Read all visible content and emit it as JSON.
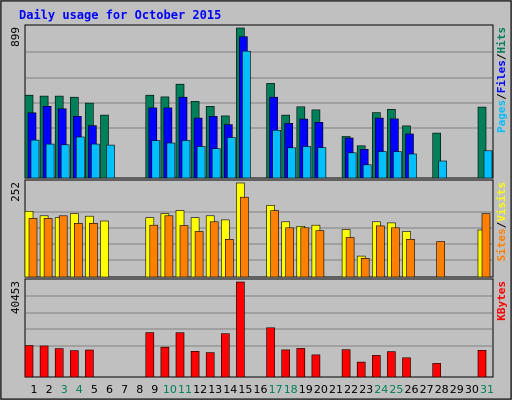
{
  "chart_data": {
    "type": "bar",
    "title": "Daily usage for October 2015",
    "days": [
      "1",
      "2",
      "3",
      "4",
      "5",
      "6",
      "7",
      "8",
      "9",
      "10",
      "11",
      "12",
      "13",
      "14",
      "15",
      "16",
      "17",
      "18",
      "19",
      "20",
      "21",
      "22",
      "23",
      "24",
      "25",
      "26",
      "27",
      "28",
      "29",
      "30",
      "31"
    ],
    "weekend_days": [
      "3",
      "4",
      "10",
      "11",
      "17",
      "18",
      "24",
      "25",
      "31"
    ],
    "panels": [
      {
        "name": "top",
        "max_label": "899",
        "ymax": 899,
        "series": [
          {
            "name": "Hits",
            "color": "#00805A",
            "values": [
              496,
              491,
              491,
              484,
              449,
              377,
              null,
              null,
              496,
              486,
              562,
              459,
              430,
              372,
              899,
              null,
              567,
              377,
              427,
              408,
              null,
              249,
              193,
              392,
              412,
              312,
              null,
              269,
              null,
              null,
              425
            ]
          },
          {
            "name": "Files",
            "color": "#0000FF",
            "values": [
              391,
              430,
              415,
              370,
              314,
              null,
              null,
              null,
              420,
              420,
              484,
              359,
              369,
              320,
              847,
              null,
              484,
              327,
              353,
              334,
              null,
              240,
              172,
              359,
              354,
              264,
              null,
              null,
              null,
              null,
              null
            ]
          },
          {
            "name": "Pages",
            "color": "#00BFFF",
            "values": [
              227,
              203,
              199,
              246,
              203,
              197,
              null,
              null,
              224,
              210,
              225,
              189,
              176,
              243,
              760,
              null,
              286,
              181,
              189,
              182,
              null,
              151,
              79,
              159,
              158,
              144,
              null,
              102,
              null,
              null,
              163
            ]
          }
        ],
        "legend": [
          "Pages",
          "/",
          "Files",
          "/",
          "Hits"
        ]
      },
      {
        "name": "middle",
        "max_label": "252",
        "ymax": 252,
        "series": [
          {
            "name": "Visits",
            "color": "#FFFF00",
            "values": [
              176,
              164,
              159,
              170,
              163,
              150,
              null,
              null,
              159,
              170,
              178,
              159,
              164,
              153,
              252,
              null,
              192,
              148,
              136,
              139,
              null,
              127,
              56,
              148,
              145,
              122,
              null,
              null,
              null,
              null,
              126
            ]
          },
          {
            "name": "Sites",
            "color": "#FF8000",
            "values": [
              157,
              157,
              164,
              144,
              144,
              null,
              null,
              null,
              139,
              164,
              138,
              122,
              148,
              101,
              214,
              null,
              178,
              132,
              132,
              124,
              null,
              106,
              50,
              137,
              132,
              101,
              null,
              95,
              null,
              null,
              170
            ]
          }
        ],
        "legend": [
          "Sites",
          "/",
          "Visits"
        ]
      },
      {
        "name": "bottom",
        "max_label": "40453",
        "ymax": 40453,
        "series": [
          {
            "name": "KBytes",
            "color": "#FF0000",
            "values": [
              13400,
              13230,
              12080,
              11260,
              11500,
              null,
              null,
              null,
              18920,
              12700,
              18870,
              10930,
              10400,
              18440,
              40453,
              null,
              20950,
              11560,
              12160,
              9420,
              null,
              11640,
              6340,
              9180,
              10820,
              8180,
              null,
              5780,
              null,
              null,
              11390
            ]
          }
        ],
        "legend": [
          "KBytes"
        ]
      }
    ],
    "colors": {
      "background": "#C0C0C0",
      "title": "#0000FF",
      "frame": "#000000",
      "gridline": "#808080",
      "day_label": "#000000",
      "weekend_label": "#00805A"
    }
  }
}
